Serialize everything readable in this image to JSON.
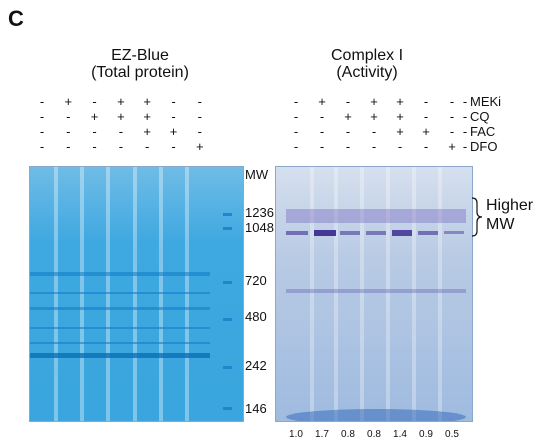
{
  "panel_label": "C",
  "left_title": [
    "EZ-Blue",
    "(Total protein)"
  ],
  "right_title": [
    "Complex I",
    "(Activity)"
  ],
  "conditions": [
    {
      "label": "MEKi",
      "signs": [
        "-",
        "+",
        "-",
        "+",
        "+",
        "-",
        "-"
      ]
    },
    {
      "label": "CQ",
      "signs": [
        "-",
        "-",
        "+",
        "+",
        "+",
        "-",
        "-"
      ]
    },
    {
      "label": "FAC",
      "signs": [
        "-",
        "-",
        "-",
        "-",
        "+",
        "+",
        "-"
      ]
    },
    {
      "label": "DFO",
      "signs": [
        "-",
        "-",
        "-",
        "-",
        "-",
        "-",
        "+"
      ]
    }
  ],
  "mw_header": "MW",
  "mw_markers": [
    "1236",
    "1048",
    "720",
    "480",
    "242",
    "146"
  ],
  "higher_mw_label": [
    "Higher",
    "MW"
  ],
  "quantification": [
    "1.0",
    "1.7",
    "0.8",
    "0.8",
    "1.4",
    "0.9",
    "0.5"
  ],
  "colors": {
    "coomassie": "#2aa0dc",
    "complex_bg": "#b7cde6",
    "complex_band": "#4a3c9e"
  }
}
